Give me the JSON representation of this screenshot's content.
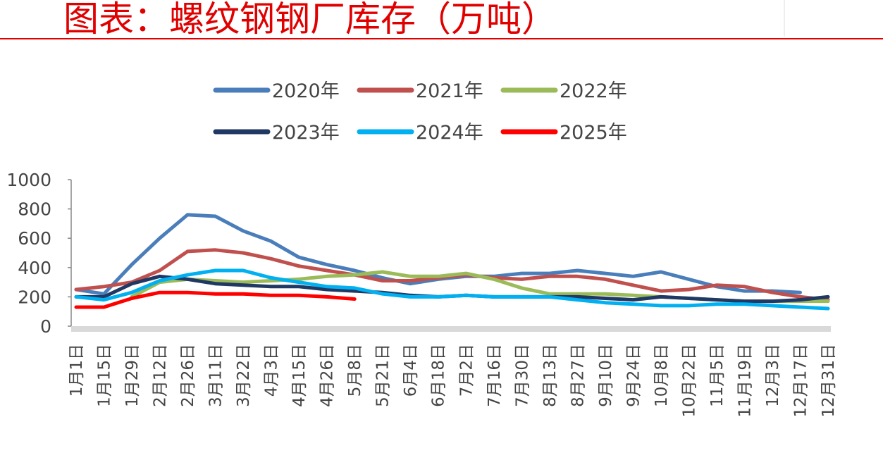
{
  "chart_data": {
    "type": "line",
    "title": "图表：螺纹钢钢厂库存（万吨）",
    "categories": [
      "1月1日",
      "1月15日",
      "1月29日",
      "2月12日",
      "2月26日",
      "3月11日",
      "3月22日",
      "4月3日",
      "4月15日",
      "4月26日",
      "5月8日",
      "5月21日",
      "6月4日",
      "6月18日",
      "7月2日",
      "7月16日",
      "7月30日",
      "8月13日",
      "8月27日",
      "9月10日",
      "9月24日",
      "10月8日",
      "10月22日",
      "11月5日",
      "11月19日",
      "12月3日",
      "12月17日",
      "12月31日"
    ],
    "series": [
      {
        "name": "2020年",
        "color": "#4a7ebb",
        "values": [
          250,
          220,
          420,
          600,
          760,
          750,
          650,
          580,
          470,
          420,
          380,
          330,
          290,
          320,
          340,
          340,
          360,
          360,
          380,
          360,
          340,
          370,
          320,
          270,
          240,
          240,
          230,
          null
        ]
      },
      {
        "name": "2021年",
        "color": "#c0504d",
        "values": [
          250,
          270,
          300,
          380,
          510,
          520,
          500,
          460,
          410,
          380,
          350,
          310,
          310,
          330,
          350,
          330,
          320,
          340,
          340,
          320,
          280,
          240,
          250,
          280,
          270,
          230,
          200,
          180
        ]
      },
      {
        "name": "2022年",
        "color": "#9bbb59",
        "values": [
          null,
          null,
          200,
          300,
          320,
          310,
          300,
          310,
          320,
          340,
          350,
          370,
          340,
          340,
          360,
          320,
          260,
          220,
          220,
          220,
          210,
          200,
          190,
          180,
          170,
          170,
          170,
          170
        ]
      },
      {
        "name": "2023年",
        "color": "#1f3864",
        "values": [
          200,
          200,
          290,
          340,
          320,
          290,
          280,
          270,
          270,
          250,
          240,
          230,
          210,
          200,
          210,
          200,
          200,
          200,
          200,
          190,
          180,
          200,
          190,
          180,
          170,
          170,
          180,
          200
        ]
      },
      {
        "name": "2024年",
        "color": "#00b0f0",
        "values": [
          200,
          180,
          230,
          310,
          350,
          380,
          380,
          330,
          300,
          270,
          260,
          220,
          200,
          200,
          210,
          200,
          200,
          200,
          180,
          160,
          150,
          140,
          140,
          150,
          150,
          140,
          130,
          120
        ]
      },
      {
        "name": "2025年",
        "color": "#ff0000",
        "values": [
          130,
          130,
          190,
          230,
          230,
          220,
          220,
          210,
          210,
          200,
          185,
          null,
          null,
          null,
          null,
          null,
          null,
          null,
          null,
          null,
          null,
          null,
          null,
          null,
          null,
          null,
          null,
          null
        ]
      }
    ],
    "ylim": [
      0,
      1000
    ],
    "yticks": [
      0,
      200,
      400,
      600,
      800,
      1000
    ],
    "grid": false
  }
}
